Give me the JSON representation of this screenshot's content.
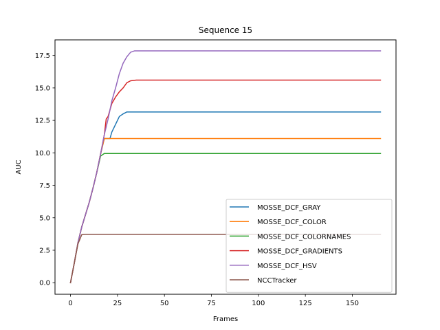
{
  "chart_data": {
    "type": "line",
    "title": "Sequence 15",
    "xlabel": "Frames",
    "ylabel": "AUC",
    "xlim": [
      -8.25,
      173.25
    ],
    "ylim": [
      -0.89,
      18.7
    ],
    "xticks": [
      0,
      25,
      50,
      75,
      100,
      125,
      150
    ],
    "yticks": [
      0.0,
      2.5,
      5.0,
      7.5,
      10.0,
      12.5,
      15.0,
      17.5
    ],
    "ytick_labels": [
      "0.0",
      "2.5",
      "5.0",
      "7.5",
      "10.0",
      "12.5",
      "15.0",
      "17.5"
    ],
    "grid": false,
    "legend_position": "lower-right",
    "series": [
      {
        "name": "MOSSE_DCF_GRAY",
        "color": "#1f77b4",
        "points": [
          [
            0,
            0
          ],
          [
            2,
            1.5
          ],
          [
            4,
            3.1
          ],
          [
            6,
            4.3
          ],
          [
            10,
            6.2
          ],
          [
            12,
            7.3
          ],
          [
            14,
            8.5
          ],
          [
            16,
            9.9
          ],
          [
            18,
            11.1
          ],
          [
            21,
            11.1
          ],
          [
            22,
            11.6
          ],
          [
            24,
            12.2
          ],
          [
            26,
            12.8
          ],
          [
            28,
            13.0
          ],
          [
            30,
            13.15
          ],
          [
            32,
            13.15
          ],
          [
            165,
            13.15
          ]
        ]
      },
      {
        "name": "MOSSE_DCF_COLOR",
        "color": "#ff7f0e",
        "points": [
          [
            0,
            0
          ],
          [
            2,
            1.5
          ],
          [
            4,
            3.1
          ],
          [
            6,
            4.3
          ],
          [
            10,
            6.2
          ],
          [
            12,
            7.3
          ],
          [
            14,
            8.5
          ],
          [
            16,
            9.9
          ],
          [
            18,
            11.1
          ],
          [
            19,
            11.1
          ],
          [
            165,
            11.1
          ]
        ]
      },
      {
        "name": "MOSSE_DCF_COLORNAMES",
        "color": "#2ca02c",
        "points": [
          [
            0,
            0
          ],
          [
            2,
            1.5
          ],
          [
            4,
            3.1
          ],
          [
            6,
            4.3
          ],
          [
            10,
            6.2
          ],
          [
            12,
            7.3
          ],
          [
            14,
            8.5
          ],
          [
            16,
            9.75
          ],
          [
            18,
            9.95
          ],
          [
            165,
            9.95
          ]
        ]
      },
      {
        "name": "MOSSE_DCF_GRADIENTS",
        "color": "#d62728",
        "points": [
          [
            0,
            0
          ],
          [
            2,
            1.5
          ],
          [
            4,
            3.1
          ],
          [
            6,
            4.3
          ],
          [
            10,
            6.2
          ],
          [
            12,
            7.3
          ],
          [
            14,
            8.5
          ],
          [
            16,
            9.9
          ],
          [
            18,
            11.4
          ],
          [
            19,
            12.6
          ],
          [
            20,
            12.8
          ],
          [
            22,
            13.8
          ],
          [
            24,
            14.3
          ],
          [
            26,
            14.7
          ],
          [
            28,
            15.0
          ],
          [
            30,
            15.4
          ],
          [
            32,
            15.55
          ],
          [
            35,
            15.6
          ],
          [
            165,
            15.6
          ]
        ]
      },
      {
        "name": "MOSSE_DCF_HSV",
        "color": "#9467bd",
        "points": [
          [
            0,
            0
          ],
          [
            2,
            1.5
          ],
          [
            4,
            3.1
          ],
          [
            6,
            4.3
          ],
          [
            10,
            6.2
          ],
          [
            12,
            7.3
          ],
          [
            14,
            8.5
          ],
          [
            16,
            9.9
          ],
          [
            18,
            11.4
          ],
          [
            20,
            12.6
          ],
          [
            22,
            14.0
          ],
          [
            24,
            15.0
          ],
          [
            26,
            16.1
          ],
          [
            28,
            16.9
          ],
          [
            30,
            17.4
          ],
          [
            32,
            17.75
          ],
          [
            34,
            17.85
          ],
          [
            165,
            17.85
          ]
        ]
      },
      {
        "name": "NCCTracker",
        "color": "#8c564b",
        "points": [
          [
            0,
            0
          ],
          [
            2,
            1.5
          ],
          [
            4,
            3.0
          ],
          [
            6,
            3.7
          ],
          [
            8,
            3.72
          ],
          [
            165,
            3.72
          ]
        ]
      }
    ]
  }
}
